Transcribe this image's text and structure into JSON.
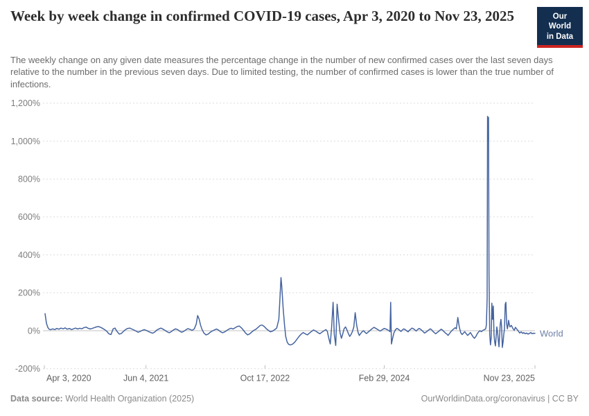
{
  "header": {
    "title": "Week by week change in confirmed COVID-19 cases, Apr 3, 2020 to Nov 23, 2025",
    "subtitle": "The weekly change on any given date measures the percentage change in the number of new confirmed cases over the last seven days relative to the number in the previous seven days. Due to limited testing, the number of confirmed cases is lower than the true number of infections."
  },
  "logo": {
    "line1": "Our World",
    "line2": "in Data",
    "bg_color": "#132e4f",
    "accent_color": "#cb2421"
  },
  "footer": {
    "source_label": "Data source:",
    "source_text": " World Health Organization (2025)",
    "right_text": "OurWorldinData.org/coronavirus | CC BY"
  },
  "chart_data": {
    "type": "line",
    "title": "Week by week change in confirmed COVID-19 cases",
    "x_axis": {
      "tick_labels": [
        "Apr 3, 2020",
        "Jun 4, 2021",
        "Oct 17, 2022",
        "Feb 29, 2024",
        "Nov 23, 2025"
      ],
      "tick_days": [
        0,
        427,
        927,
        1428,
        2061
      ],
      "range_days": [
        0,
        2061
      ]
    },
    "y_axis": {
      "ticks": [
        -200,
        0,
        200,
        400,
        600,
        800,
        1000,
        1200
      ],
      "ylim": [
        -200,
        1200
      ],
      "unit": "%"
    },
    "grid": "dashed-horizontal",
    "colors": {
      "line": "#44639f",
      "entity_label": "#6f80a7",
      "grid": "#dcdcdc",
      "zero_line": "#c0c0c0",
      "tick_text": "#7d7d7d",
      "date_text": "#5f5f5f",
      "tick_mark": "#bdbdbd"
    },
    "series": [
      {
        "name": "World",
        "points": [
          [
            3,
            90
          ],
          [
            9,
            38
          ],
          [
            15,
            16
          ],
          [
            20,
            8
          ],
          [
            26,
            5
          ],
          [
            35,
            10
          ],
          [
            44,
            6
          ],
          [
            52,
            12
          ],
          [
            61,
            8
          ],
          [
            70,
            14
          ],
          [
            79,
            10
          ],
          [
            87,
            15
          ],
          [
            96,
            8
          ],
          [
            105,
            12
          ],
          [
            114,
            6
          ],
          [
            122,
            10
          ],
          [
            131,
            14
          ],
          [
            140,
            9
          ],
          [
            149,
            13
          ],
          [
            157,
            10
          ],
          [
            166,
            16
          ],
          [
            175,
            19
          ],
          [
            184,
            13
          ],
          [
            192,
            9
          ],
          [
            201,
            12
          ],
          [
            210,
            16
          ],
          [
            219,
            20
          ],
          [
            227,
            22
          ],
          [
            236,
            18
          ],
          [
            245,
            12
          ],
          [
            254,
            5
          ],
          [
            262,
            -3
          ],
          [
            271,
            -16
          ],
          [
            280,
            -20
          ],
          [
            289,
            10
          ],
          [
            297,
            14
          ],
          [
            306,
            -5
          ],
          [
            315,
            -18
          ],
          [
            324,
            -14
          ],
          [
            332,
            -4
          ],
          [
            341,
            6
          ],
          [
            350,
            12
          ],
          [
            359,
            14
          ],
          [
            367,
            9
          ],
          [
            376,
            4
          ],
          [
            385,
            -2
          ],
          [
            394,
            -8
          ],
          [
            402,
            -4
          ],
          [
            411,
            2
          ],
          [
            420,
            6
          ],
          [
            429,
            1
          ],
          [
            437,
            -4
          ],
          [
            446,
            -9
          ],
          [
            455,
            -13
          ],
          [
            464,
            -7
          ],
          [
            472,
            3
          ],
          [
            481,
            9
          ],
          [
            490,
            14
          ],
          [
            499,
            8
          ],
          [
            507,
            2
          ],
          [
            516,
            -6
          ],
          [
            525,
            -11
          ],
          [
            533,
            -5
          ],
          [
            542,
            4
          ],
          [
            551,
            10
          ],
          [
            560,
            6
          ],
          [
            568,
            -2
          ],
          [
            577,
            -8
          ],
          [
            586,
            -3
          ],
          [
            595,
            5
          ],
          [
            603,
            11
          ],
          [
            612,
            7
          ],
          [
            621,
            2
          ],
          [
            630,
            10
          ],
          [
            638,
            35
          ],
          [
            644,
            80
          ],
          [
            650,
            62
          ],
          [
            656,
            30
          ],
          [
            662,
            8
          ],
          [
            670,
            -12
          ],
          [
            679,
            -22
          ],
          [
            688,
            -18
          ],
          [
            697,
            -8
          ],
          [
            705,
            -2
          ],
          [
            714,
            4
          ],
          [
            723,
            9
          ],
          [
            732,
            3
          ],
          [
            740,
            -5
          ],
          [
            749,
            -11
          ],
          [
            758,
            -6
          ],
          [
            767,
            2
          ],
          [
            775,
            8
          ],
          [
            784,
            13
          ],
          [
            793,
            9
          ],
          [
            802,
            16
          ],
          [
            810,
            22
          ],
          [
            819,
            25
          ],
          [
            828,
            15
          ],
          [
            837,
            2
          ],
          [
            845,
            -12
          ],
          [
            854,
            -22
          ],
          [
            863,
            -16
          ],
          [
            872,
            -6
          ],
          [
            880,
            2
          ],
          [
            889,
            8
          ],
          [
            898,
            18
          ],
          [
            907,
            28
          ],
          [
            915,
            30
          ],
          [
            924,
            22
          ],
          [
            933,
            10
          ],
          [
            941,
            2
          ],
          [
            950,
            -6
          ],
          [
            959,
            -2
          ],
          [
            968,
            6
          ],
          [
            976,
            14
          ],
          [
            985,
            60
          ],
          [
            991,
            200
          ],
          [
            994,
            280
          ],
          [
            997,
            240
          ],
          [
            1003,
            120
          ],
          [
            1009,
            30
          ],
          [
            1014,
            -30
          ],
          [
            1020,
            -60
          ],
          [
            1026,
            -72
          ],
          [
            1035,
            -75
          ],
          [
            1044,
            -70
          ],
          [
            1052,
            -60
          ],
          [
            1061,
            -45
          ],
          [
            1070,
            -30
          ],
          [
            1079,
            -18
          ],
          [
            1087,
            -10
          ],
          [
            1096,
            -16
          ],
          [
            1105,
            -22
          ],
          [
            1114,
            -12
          ],
          [
            1122,
            -4
          ],
          [
            1131,
            4
          ],
          [
            1140,
            -2
          ],
          [
            1149,
            -10
          ],
          [
            1157,
            -16
          ],
          [
            1166,
            -8
          ],
          [
            1175,
            0
          ],
          [
            1183,
            6
          ],
          [
            1189,
            -4
          ],
          [
            1195,
            -40
          ],
          [
            1201,
            -70
          ],
          [
            1207,
            20
          ],
          [
            1213,
            150
          ],
          [
            1218,
            -20
          ],
          [
            1224,
            -78
          ],
          [
            1230,
            140
          ],
          [
            1236,
            60
          ],
          [
            1242,
            -10
          ],
          [
            1248,
            -40
          ],
          [
            1253,
            -20
          ],
          [
            1259,
            10
          ],
          [
            1265,
            20
          ],
          [
            1271,
            5
          ],
          [
            1277,
            -15
          ],
          [
            1283,
            -30
          ],
          [
            1288,
            -20
          ],
          [
            1294,
            -5
          ],
          [
            1300,
            20
          ],
          [
            1306,
            95
          ],
          [
            1312,
            30
          ],
          [
            1318,
            -10
          ],
          [
            1323,
            -25
          ],
          [
            1329,
            -15
          ],
          [
            1335,
            -5
          ],
          [
            1341,
            0
          ],
          [
            1347,
            -8
          ],
          [
            1353,
            -15
          ],
          [
            1358,
            -10
          ],
          [
            1367,
            0
          ],
          [
            1376,
            10
          ],
          [
            1385,
            18
          ],
          [
            1393,
            12
          ],
          [
            1402,
            5
          ],
          [
            1411,
            -2
          ],
          [
            1420,
            6
          ],
          [
            1428,
            12
          ],
          [
            1437,
            8
          ],
          [
            1446,
            2
          ],
          [
            1452,
            -5
          ],
          [
            1455,
            150
          ],
          [
            1458,
            -70
          ],
          [
            1463,
            -40
          ],
          [
            1469,
            -10
          ],
          [
            1475,
            5
          ],
          [
            1481,
            12
          ],
          [
            1487,
            8
          ],
          [
            1493,
            2
          ],
          [
            1498,
            -4
          ],
          [
            1504,
            4
          ],
          [
            1510,
            10
          ],
          [
            1516,
            6
          ],
          [
            1522,
            0
          ],
          [
            1528,
            -6
          ],
          [
            1533,
            2
          ],
          [
            1539,
            8
          ],
          [
            1545,
            14
          ],
          [
            1551,
            10
          ],
          [
            1557,
            4
          ],
          [
            1562,
            -2
          ],
          [
            1568,
            6
          ],
          [
            1574,
            12
          ],
          [
            1580,
            8
          ],
          [
            1586,
            2
          ],
          [
            1592,
            -6
          ],
          [
            1597,
            -12
          ],
          [
            1603,
            -8
          ],
          [
            1609,
            -2
          ],
          [
            1615,
            4
          ],
          [
            1621,
            10
          ],
          [
            1627,
            5
          ],
          [
            1632,
            -3
          ],
          [
            1638,
            -10
          ],
          [
            1644,
            -16
          ],
          [
            1650,
            -10
          ],
          [
            1656,
            -4
          ],
          [
            1661,
            2
          ],
          [
            1667,
            8
          ],
          [
            1673,
            3
          ],
          [
            1679,
            -5
          ],
          [
            1685,
            -12
          ],
          [
            1691,
            -18
          ],
          [
            1696,
            -25
          ],
          [
            1702,
            -15
          ],
          [
            1708,
            -5
          ],
          [
            1714,
            3
          ],
          [
            1720,
            10
          ],
          [
            1726,
            16
          ],
          [
            1731,
            10
          ],
          [
            1737,
            70
          ],
          [
            1743,
            20
          ],
          [
            1749,
            -10
          ],
          [
            1755,
            -20
          ],
          [
            1761,
            -12
          ],
          [
            1766,
            -5
          ],
          [
            1772,
            -15
          ],
          [
            1778,
            -25
          ],
          [
            1784,
            -18
          ],
          [
            1790,
            -10
          ],
          [
            1795,
            -20
          ],
          [
            1801,
            -32
          ],
          [
            1807,
            -40
          ],
          [
            1813,
            -30
          ],
          [
            1819,
            -15
          ],
          [
            1825,
            -5
          ],
          [
            1830,
            0
          ],
          [
            1836,
            -5
          ],
          [
            1842,
            2
          ],
          [
            1848,
            5
          ],
          [
            1854,
            10
          ],
          [
            1857,
            30
          ],
          [
            1860,
            170
          ],
          [
            1862,
            1130
          ],
          [
            1864,
            1005
          ],
          [
            1866,
            1125
          ],
          [
            1868,
            300
          ],
          [
            1871,
            -20
          ],
          [
            1874,
            -75
          ],
          [
            1877,
            -40
          ],
          [
            1880,
            145
          ],
          [
            1883,
            60
          ],
          [
            1886,
            130
          ],
          [
            1889,
            -20
          ],
          [
            1892,
            -60
          ],
          [
            1895,
            -80
          ],
          [
            1898,
            -30
          ],
          [
            1901,
            20
          ],
          [
            1904,
            -10
          ],
          [
            1907,
            -50
          ],
          [
            1910,
            -85
          ],
          [
            1912,
            -40
          ],
          [
            1915,
            30
          ],
          [
            1918,
            60
          ],
          [
            1921,
            20
          ],
          [
            1924,
            -88
          ],
          [
            1927,
            -60
          ],
          [
            1930,
            -20
          ],
          [
            1933,
            10
          ],
          [
            1936,
            140
          ],
          [
            1939,
            150
          ],
          [
            1942,
            40
          ],
          [
            1945,
            10
          ],
          [
            1948,
            30
          ],
          [
            1950,
            55
          ],
          [
            1953,
            35
          ],
          [
            1956,
            20
          ],
          [
            1962,
            28
          ],
          [
            1968,
            12
          ],
          [
            1974,
            2
          ],
          [
            1979,
            18
          ],
          [
            1985,
            8
          ],
          [
            1991,
            -2
          ],
          [
            1997,
            -12
          ],
          [
            2003,
            -6
          ],
          [
            2009,
            -14
          ],
          [
            2014,
            -10
          ],
          [
            2020,
            -16
          ],
          [
            2026,
            -12
          ],
          [
            2032,
            -18
          ],
          [
            2038,
            -14
          ],
          [
            2044,
            -10
          ],
          [
            2049,
            -16
          ],
          [
            2055,
            -13
          ],
          [
            2061,
            -14
          ]
        ]
      }
    ]
  }
}
